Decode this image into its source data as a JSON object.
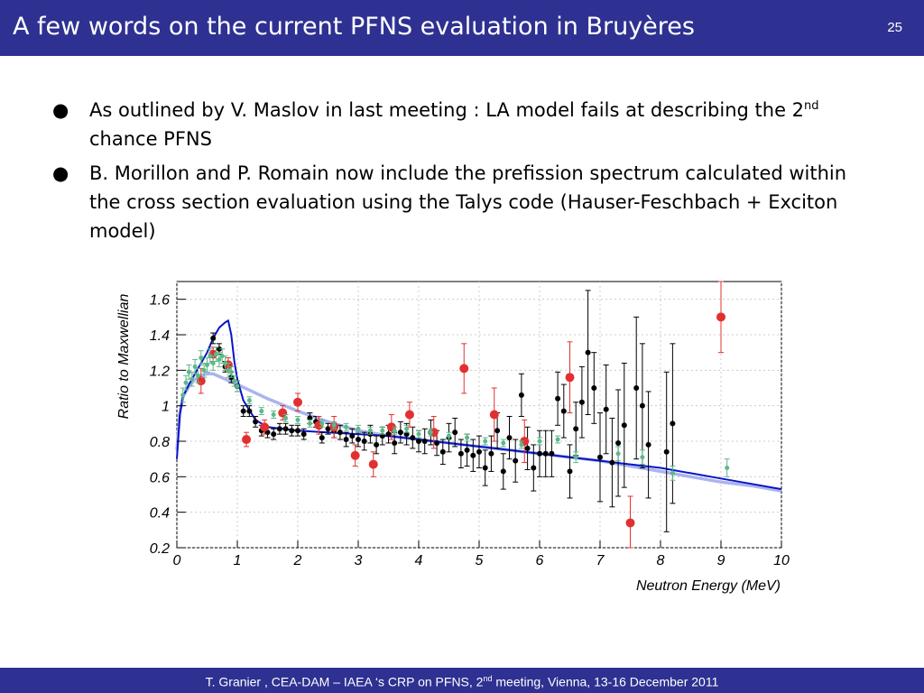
{
  "slide": {
    "title": "A few words on the current PFNS evaluation in Bruyères",
    "page_number": "25",
    "bullets": [
      {
        "text_before": "As outlined by V. Maslov in last meeting : LA model fails at describing the 2",
        "superscript": "nd",
        "text_after": " chance PFNS"
      },
      {
        "text_before": "B. Morillon and P. Romain now include the prefission spectrum calculated within the cross section evaluation using the Talys code (Hauser-Feschbach + Exciton model)",
        "superscript": "",
        "text_after": ""
      }
    ],
    "footer": {
      "before": "T. Granier ,  CEA-DAM – IAEA ‘s CRP on PFNS, 2",
      "superscript": "nd",
      "after": " meeting,  Vienna, 13-16 December 2011"
    }
  },
  "colors": {
    "header": "#2e3191",
    "calc": "#0a14c8",
    "evaluation": "#aab4ee",
    "black_data": "#000000",
    "red_data": "#e23030",
    "green_data": "#5cb88a"
  },
  "chart_data": {
    "type": "scatter",
    "xlabel": "Neutron Energy (MeV)",
    "ylabel": "Ratio to Maxwellian",
    "xlim": [
      0,
      10
    ],
    "ylim": [
      0.2,
      1.7
    ],
    "x_ticks": [
      0,
      1,
      2,
      3,
      4,
      5,
      6,
      7,
      8,
      9,
      10
    ],
    "x_tick_labels": [
      "0",
      "1",
      "2",
      "3",
      "4",
      "5",
      "6",
      "7",
      "8",
      "9",
      "10"
    ],
    "y_ticks": [
      0.2,
      0.4,
      0.6,
      0.8,
      1.0,
      1.2,
      1.4,
      1.6
    ],
    "y_tick_labels": [
      "0.2",
      "0.4",
      "0.6",
      "0.8",
      "1",
      "1.2",
      "1.4",
      "1.6"
    ],
    "lines": [
      {
        "color": "#0a14c8",
        "x": [
          0,
          0.05,
          0.1,
          0.2,
          0.3,
          0.4,
          0.5,
          0.6,
          0.7,
          0.8,
          0.85,
          0.9,
          0.95,
          1.0,
          1.1,
          1.3,
          1.5,
          2,
          2.5,
          3,
          3.5,
          4,
          4.5,
          5,
          5.5,
          6,
          6.5,
          7,
          7.5,
          8,
          8.5,
          9,
          9.5,
          10
        ],
        "y": [
          0.7,
          0.95,
          1.05,
          1.12,
          1.18,
          1.24,
          1.3,
          1.38,
          1.44,
          1.47,
          1.48,
          1.4,
          1.25,
          1.15,
          1.03,
          0.92,
          0.88,
          0.86,
          0.85,
          0.84,
          0.83,
          0.81,
          0.79,
          0.77,
          0.75,
          0.73,
          0.71,
          0.69,
          0.67,
          0.65,
          0.62,
          0.59,
          0.56,
          0.53
        ]
      },
      {
        "color": "#aab4ee",
        "x": [
          0,
          0.05,
          0.1,
          0.2,
          0.3,
          0.4,
          0.5,
          0.6,
          0.8,
          1.0,
          1.5,
          2,
          2.5,
          3,
          3.5,
          4,
          4.5,
          5,
          5.5,
          6,
          6.5,
          7,
          7.5,
          8,
          8.5,
          9,
          9.5,
          10
        ],
        "y": [
          0.75,
          0.96,
          1.05,
          1.11,
          1.15,
          1.17,
          1.18,
          1.18,
          1.15,
          1.12,
          1.04,
          0.97,
          0.91,
          0.86,
          0.83,
          0.81,
          0.79,
          0.77,
          0.75,
          0.73,
          0.71,
          0.69,
          0.66,
          0.63,
          0.6,
          0.57,
          0.55,
          0.52
        ]
      }
    ],
    "series": [
      {
        "color": "#000000",
        "r": 3,
        "x": [
          0.6,
          0.7,
          0.8,
          0.9,
          1.0,
          1.1,
          1.2,
          1.3,
          1.4,
          1.5,
          1.6,
          1.7,
          1.8,
          1.9,
          2.0,
          2.1,
          2.2,
          2.3,
          2.4,
          2.5,
          2.6,
          2.7,
          2.8,
          2.9,
          3.0,
          3.1,
          3.2,
          3.3,
          3.4,
          3.5,
          3.6,
          3.7,
          3.8,
          3.9,
          4.0,
          4.1,
          4.2,
          4.3,
          4.4,
          4.5,
          4.6,
          4.7,
          4.8,
          4.9,
          5.0,
          5.1,
          5.2,
          5.3,
          5.4,
          5.5,
          5.6,
          5.7,
          5.8,
          5.9,
          6.0,
          6.1,
          6.2,
          6.3,
          6.4,
          6.5,
          6.6,
          6.7,
          6.8,
          6.9,
          7.0,
          7.1,
          7.2,
          7.3,
          7.4,
          7.6,
          7.7,
          7.8,
          8.1,
          8.2
        ],
        "y": [
          1.38,
          1.32,
          1.22,
          1.16,
          1.11,
          0.97,
          0.97,
          0.91,
          0.86,
          0.85,
          0.84,
          0.87,
          0.87,
          0.86,
          0.86,
          0.84,
          0.93,
          0.91,
          0.82,
          0.87,
          0.86,
          0.85,
          0.81,
          0.83,
          0.81,
          0.8,
          0.84,
          0.78,
          0.83,
          0.84,
          0.79,
          0.85,
          0.84,
          0.82,
          0.8,
          0.8,
          0.85,
          0.79,
          0.74,
          0.82,
          0.85,
          0.73,
          0.75,
          0.72,
          0.74,
          0.65,
          0.73,
          0.86,
          0.63,
          0.82,
          0.69,
          1.06,
          0.76,
          0.65,
          0.73,
          0.73,
          0.73,
          1.04,
          0.97,
          0.63,
          0.87,
          1.02,
          1.3,
          1.1,
          0.71,
          0.98,
          0.68,
          0.79,
          0.89,
          1.1,
          1.0,
          0.78,
          0.74,
          0.9
        ],
        "err": [
          0.03,
          0.03,
          0.03,
          0.03,
          0.03,
          0.03,
          0.03,
          0.03,
          0.03,
          0.03,
          0.03,
          0.03,
          0.03,
          0.03,
          0.03,
          0.03,
          0.03,
          0.03,
          0.03,
          0.03,
          0.04,
          0.04,
          0.04,
          0.04,
          0.04,
          0.05,
          0.05,
          0.05,
          0.05,
          0.05,
          0.06,
          0.06,
          0.06,
          0.06,
          0.06,
          0.07,
          0.07,
          0.07,
          0.07,
          0.08,
          0.08,
          0.08,
          0.09,
          0.09,
          0.09,
          0.1,
          0.1,
          0.1,
          0.1,
          0.12,
          0.12,
          0.12,
          0.12,
          0.13,
          0.13,
          0.13,
          0.13,
          0.15,
          0.15,
          0.15,
          0.15,
          0.2,
          0.35,
          0.2,
          0.25,
          0.25,
          0.25,
          0.3,
          0.35,
          0.4,
          0.35,
          0.3,
          0.45,
          0.45
        ]
      },
      {
        "color": "#e23030",
        "r": 5,
        "x": [
          0.4,
          0.6,
          0.85,
          1.15,
          1.45,
          1.75,
          2.0,
          2.35,
          2.6,
          2.95,
          3.25,
          3.55,
          3.85,
          4.25,
          4.75,
          5.25,
          5.75,
          6.5,
          7.5,
          9.0
        ],
        "y": [
          1.14,
          1.29,
          1.23,
          0.81,
          0.88,
          0.96,
          1.02,
          0.89,
          0.88,
          0.72,
          0.67,
          0.88,
          0.95,
          0.85,
          1.21,
          0.95,
          0.8,
          1.16,
          0.34,
          1.5
        ],
        "err": [
          0.07,
          0.04,
          0.04,
          0.04,
          0.04,
          0.04,
          0.05,
          0.05,
          0.06,
          0.06,
          0.07,
          0.07,
          0.07,
          0.09,
          0.14,
          0.15,
          0.12,
          0.2,
          0.15,
          0.2
        ]
      },
      {
        "color": "#5cb88a",
        "r": 2.5,
        "x": [
          0.1,
          0.15,
          0.2,
          0.25,
          0.3,
          0.35,
          0.4,
          0.45,
          0.5,
          0.55,
          0.6,
          0.65,
          0.7,
          0.75,
          0.8,
          0.85,
          0.9,
          0.95,
          1.0,
          1.2,
          1.4,
          1.6,
          1.8,
          2.0,
          2.2,
          2.4,
          2.6,
          2.8,
          3.0,
          3.2,
          3.4,
          3.6,
          3.8,
          4.0,
          4.2,
          4.5,
          4.8,
          5.1,
          5.4,
          5.7,
          6.0,
          6.3,
          6.6,
          7.3,
          7.7,
          8.2,
          9.1
        ],
        "y": [
          1.06,
          1.13,
          1.19,
          1.15,
          1.22,
          1.17,
          1.27,
          1.2,
          1.23,
          1.28,
          1.24,
          1.29,
          1.26,
          1.28,
          1.24,
          1.2,
          1.19,
          1.14,
          1.11,
          1.03,
          0.97,
          0.95,
          0.93,
          0.92,
          0.9,
          0.9,
          0.89,
          0.88,
          0.87,
          0.86,
          0.86,
          0.86,
          0.87,
          0.84,
          0.85,
          0.83,
          0.82,
          0.8,
          0.79,
          0.78,
          0.8,
          0.81,
          0.71,
          0.73,
          0.71,
          0.62,
          0.65
        ],
        "err": [
          0.04,
          0.04,
          0.04,
          0.04,
          0.04,
          0.04,
          0.04,
          0.04,
          0.04,
          0.04,
          0.04,
          0.04,
          0.04,
          0.04,
          0.04,
          0.04,
          0.03,
          0.03,
          0.03,
          0.02,
          0.02,
          0.02,
          0.02,
          0.02,
          0.02,
          0.02,
          0.02,
          0.02,
          0.02,
          0.02,
          0.02,
          0.02,
          0.02,
          0.02,
          0.02,
          0.02,
          0.02,
          0.02,
          0.02,
          0.02,
          0.02,
          0.02,
          0.03,
          0.04,
          0.04,
          0.04,
          0.05
        ]
      }
    ]
  }
}
